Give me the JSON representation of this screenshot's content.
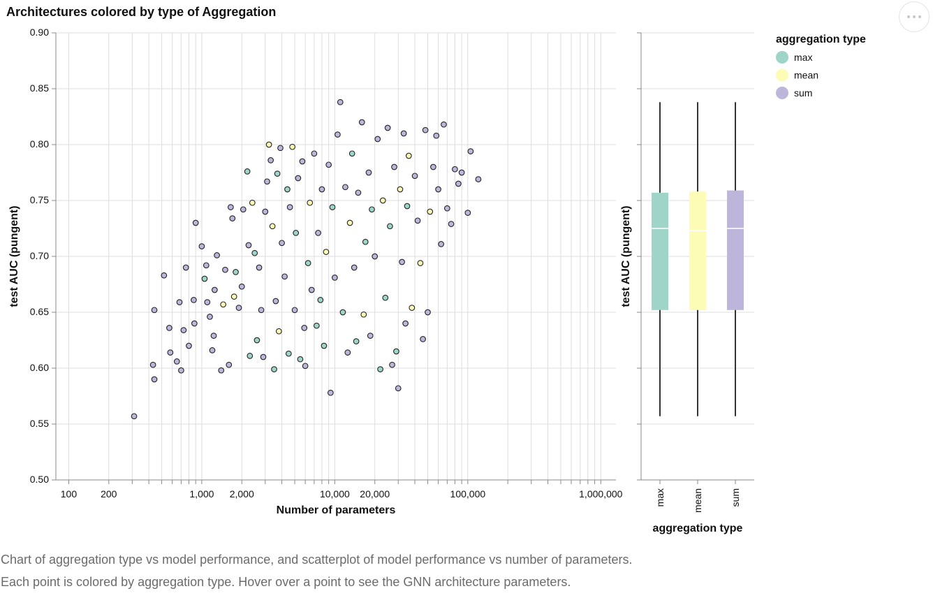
{
  "colors": {
    "max": "#9fd4c8",
    "mean": "#fdfcb6",
    "sum": "#beb6da",
    "grid": "#dddddd",
    "axis": "#888888",
    "point_stroke": "#222222"
  },
  "icons": {
    "more": "more-horizontal-icon"
  },
  "caption": {
    "line1": "Chart of aggregation type vs model performance, and scatterplot of model performance vs number of parameters.",
    "line2": "Each point is colored by aggregation type. Hover over a point to see the GNN architecture parameters."
  },
  "chart_data": [
    {
      "type": "scatter",
      "title": "Architectures colored by type of Aggregation",
      "xlabel": "Number of parameters",
      "ylabel": "test AUC (pungent)",
      "x_scale": "log",
      "xlim": [
        80,
        1300000
      ],
      "ylim": [
        0.5,
        0.9
      ],
      "x_tick_labels": [
        {
          "value": 100,
          "label": "100"
        },
        {
          "value": 200,
          "label": "200"
        },
        {
          "value": 1000,
          "label": "1,000"
        },
        {
          "value": 2000,
          "label": "2,000"
        },
        {
          "value": 10000,
          "label": "10,000"
        },
        {
          "value": 20000,
          "label": "20,000"
        },
        {
          "value": 100000,
          "label": "100,000"
        },
        {
          "value": 1000000,
          "label": "1,000,000"
        }
      ],
      "y_ticks": [
        {
          "value": 0.5,
          "label": "0.50"
        },
        {
          "value": 0.55,
          "label": "0.55"
        },
        {
          "value": 0.6,
          "label": "0.60"
        },
        {
          "value": 0.65,
          "label": "0.65"
        },
        {
          "value": 0.7,
          "label": "0.70"
        },
        {
          "value": 0.75,
          "label": "0.75"
        },
        {
          "value": 0.8,
          "label": "0.80"
        },
        {
          "value": 0.85,
          "label": "0.85"
        },
        {
          "value": 0.9,
          "label": "0.90"
        }
      ],
      "grid": true,
      "points": [
        {
          "x": 310,
          "y": 0.557,
          "agg": "sum"
        },
        {
          "x": 440,
          "y": 0.59,
          "agg": "sum"
        },
        {
          "x": 430,
          "y": 0.603,
          "agg": "sum"
        },
        {
          "x": 440,
          "y": 0.652,
          "agg": "sum"
        },
        {
          "x": 520,
          "y": 0.683,
          "agg": "sum"
        },
        {
          "x": 580,
          "y": 0.614,
          "agg": "sum"
        },
        {
          "x": 570,
          "y": 0.636,
          "agg": "sum"
        },
        {
          "x": 650,
          "y": 0.606,
          "agg": "sum"
        },
        {
          "x": 680,
          "y": 0.659,
          "agg": "sum"
        },
        {
          "x": 700,
          "y": 0.598,
          "agg": "sum"
        },
        {
          "x": 730,
          "y": 0.634,
          "agg": "sum"
        },
        {
          "x": 760,
          "y": 0.69,
          "agg": "sum"
        },
        {
          "x": 800,
          "y": 0.62,
          "agg": "sum"
        },
        {
          "x": 870,
          "y": 0.661,
          "agg": "sum"
        },
        {
          "x": 880,
          "y": 0.64,
          "agg": "sum"
        },
        {
          "x": 900,
          "y": 0.73,
          "agg": "sum"
        },
        {
          "x": 1000,
          "y": 0.709,
          "agg": "sum"
        },
        {
          "x": 1050,
          "y": 0.68,
          "agg": "max"
        },
        {
          "x": 1080,
          "y": 0.692,
          "agg": "sum"
        },
        {
          "x": 1100,
          "y": 0.659,
          "agg": "sum"
        },
        {
          "x": 1150,
          "y": 0.646,
          "agg": "sum"
        },
        {
          "x": 1200,
          "y": 0.616,
          "agg": "sum"
        },
        {
          "x": 1230,
          "y": 0.629,
          "agg": "sum"
        },
        {
          "x": 1250,
          "y": 0.67,
          "agg": "sum"
        },
        {
          "x": 1300,
          "y": 0.701,
          "agg": "sum"
        },
        {
          "x": 1400,
          "y": 0.598,
          "agg": "sum"
        },
        {
          "x": 1450,
          "y": 0.657,
          "agg": "mean"
        },
        {
          "x": 1500,
          "y": 0.688,
          "agg": "sum"
        },
        {
          "x": 1600,
          "y": 0.603,
          "agg": "sum"
        },
        {
          "x": 1650,
          "y": 0.744,
          "agg": "sum"
        },
        {
          "x": 1700,
          "y": 0.734,
          "agg": "sum"
        },
        {
          "x": 1750,
          "y": 0.664,
          "agg": "mean"
        },
        {
          "x": 1800,
          "y": 0.686,
          "agg": "max"
        },
        {
          "x": 1900,
          "y": 0.654,
          "agg": "sum"
        },
        {
          "x": 2000,
          "y": 0.673,
          "agg": "sum"
        },
        {
          "x": 2050,
          "y": 0.742,
          "agg": "sum"
        },
        {
          "x": 2200,
          "y": 0.776,
          "agg": "max"
        },
        {
          "x": 2250,
          "y": 0.71,
          "agg": "sum"
        },
        {
          "x": 2300,
          "y": 0.611,
          "agg": "max"
        },
        {
          "x": 2400,
          "y": 0.748,
          "agg": "mean"
        },
        {
          "x": 2500,
          "y": 0.703,
          "agg": "max"
        },
        {
          "x": 2600,
          "y": 0.625,
          "agg": "max"
        },
        {
          "x": 2700,
          "y": 0.69,
          "agg": "sum"
        },
        {
          "x": 2800,
          "y": 0.652,
          "agg": "sum"
        },
        {
          "x": 2900,
          "y": 0.61,
          "agg": "sum"
        },
        {
          "x": 3000,
          "y": 0.74,
          "agg": "sum"
        },
        {
          "x": 3100,
          "y": 0.767,
          "agg": "sum"
        },
        {
          "x": 3200,
          "y": 0.8,
          "agg": "mean"
        },
        {
          "x": 3300,
          "y": 0.786,
          "agg": "sum"
        },
        {
          "x": 3400,
          "y": 0.727,
          "agg": "mean"
        },
        {
          "x": 3500,
          "y": 0.599,
          "agg": "max"
        },
        {
          "x": 3600,
          "y": 0.66,
          "agg": "sum"
        },
        {
          "x": 3700,
          "y": 0.774,
          "agg": "max"
        },
        {
          "x": 3800,
          "y": 0.633,
          "agg": "mean"
        },
        {
          "x": 3900,
          "y": 0.797,
          "agg": "sum"
        },
        {
          "x": 4000,
          "y": 0.712,
          "agg": "sum"
        },
        {
          "x": 4200,
          "y": 0.682,
          "agg": "sum"
        },
        {
          "x": 4400,
          "y": 0.76,
          "agg": "max"
        },
        {
          "x": 4500,
          "y": 0.613,
          "agg": "max"
        },
        {
          "x": 4600,
          "y": 0.744,
          "agg": "sum"
        },
        {
          "x": 4800,
          "y": 0.798,
          "agg": "mean"
        },
        {
          "x": 5000,
          "y": 0.652,
          "agg": "sum"
        },
        {
          "x": 5100,
          "y": 0.721,
          "agg": "max"
        },
        {
          "x": 5300,
          "y": 0.77,
          "agg": "sum"
        },
        {
          "x": 5500,
          "y": 0.608,
          "agg": "max"
        },
        {
          "x": 5700,
          "y": 0.785,
          "agg": "sum"
        },
        {
          "x": 5900,
          "y": 0.636,
          "agg": "sum"
        },
        {
          "x": 6000,
          "y": 0.602,
          "agg": "sum"
        },
        {
          "x": 6300,
          "y": 0.694,
          "agg": "max"
        },
        {
          "x": 6500,
          "y": 0.748,
          "agg": "mean"
        },
        {
          "x": 6700,
          "y": 0.67,
          "agg": "sum"
        },
        {
          "x": 7000,
          "y": 0.792,
          "agg": "sum"
        },
        {
          "x": 7300,
          "y": 0.638,
          "agg": "max"
        },
        {
          "x": 7500,
          "y": 0.721,
          "agg": "sum"
        },
        {
          "x": 7800,
          "y": 0.661,
          "agg": "max"
        },
        {
          "x": 8000,
          "y": 0.76,
          "agg": "sum"
        },
        {
          "x": 8300,
          "y": 0.62,
          "agg": "max"
        },
        {
          "x": 8600,
          "y": 0.704,
          "agg": "mean"
        },
        {
          "x": 9000,
          "y": 0.782,
          "agg": "sum"
        },
        {
          "x": 9300,
          "y": 0.578,
          "agg": "sum"
        },
        {
          "x": 9600,
          "y": 0.744,
          "agg": "max"
        },
        {
          "x": 10000,
          "y": 0.681,
          "agg": "sum"
        },
        {
          "x": 10500,
          "y": 0.809,
          "agg": "sum"
        },
        {
          "x": 11000,
          "y": 0.838,
          "agg": "sum"
        },
        {
          "x": 11500,
          "y": 0.65,
          "agg": "max"
        },
        {
          "x": 12000,
          "y": 0.762,
          "agg": "sum"
        },
        {
          "x": 12500,
          "y": 0.614,
          "agg": "sum"
        },
        {
          "x": 13000,
          "y": 0.73,
          "agg": "mean"
        },
        {
          "x": 13500,
          "y": 0.792,
          "agg": "max"
        },
        {
          "x": 14000,
          "y": 0.69,
          "agg": "sum"
        },
        {
          "x": 14500,
          "y": 0.624,
          "agg": "max"
        },
        {
          "x": 15000,
          "y": 0.757,
          "agg": "sum"
        },
        {
          "x": 16000,
          "y": 0.82,
          "agg": "sum"
        },
        {
          "x": 16500,
          "y": 0.648,
          "agg": "mean"
        },
        {
          "x": 17000,
          "y": 0.713,
          "agg": "max"
        },
        {
          "x": 18000,
          "y": 0.775,
          "agg": "sum"
        },
        {
          "x": 18500,
          "y": 0.629,
          "agg": "sum"
        },
        {
          "x": 19000,
          "y": 0.742,
          "agg": "max"
        },
        {
          "x": 20000,
          "y": 0.7,
          "agg": "sum"
        },
        {
          "x": 21000,
          "y": 0.805,
          "agg": "sum"
        },
        {
          "x": 22000,
          "y": 0.599,
          "agg": "max"
        },
        {
          "x": 23000,
          "y": 0.75,
          "agg": "mean"
        },
        {
          "x": 24000,
          "y": 0.663,
          "agg": "max"
        },
        {
          "x": 25000,
          "y": 0.815,
          "agg": "sum"
        },
        {
          "x": 26000,
          "y": 0.727,
          "agg": "max"
        },
        {
          "x": 27000,
          "y": 0.603,
          "agg": "sum"
        },
        {
          "x": 28000,
          "y": 0.78,
          "agg": "sum"
        },
        {
          "x": 29000,
          "y": 0.615,
          "agg": "max"
        },
        {
          "x": 30000,
          "y": 0.582,
          "agg": "sum"
        },
        {
          "x": 31000,
          "y": 0.76,
          "agg": "mean"
        },
        {
          "x": 32000,
          "y": 0.695,
          "agg": "sum"
        },
        {
          "x": 33000,
          "y": 0.81,
          "agg": "sum"
        },
        {
          "x": 34000,
          "y": 0.64,
          "agg": "sum"
        },
        {
          "x": 35000,
          "y": 0.745,
          "agg": "max"
        },
        {
          "x": 36000,
          "y": 0.79,
          "agg": "mean"
        },
        {
          "x": 38000,
          "y": 0.654,
          "agg": "mean"
        },
        {
          "x": 40000,
          "y": 0.772,
          "agg": "sum"
        },
        {
          "x": 42000,
          "y": 0.732,
          "agg": "sum"
        },
        {
          "x": 44000,
          "y": 0.694,
          "agg": "mean"
        },
        {
          "x": 46000,
          "y": 0.626,
          "agg": "sum"
        },
        {
          "x": 48000,
          "y": 0.813,
          "agg": "sum"
        },
        {
          "x": 50000,
          "y": 0.65,
          "agg": "sum"
        },
        {
          "x": 52000,
          "y": 0.74,
          "agg": "mean"
        },
        {
          "x": 55000,
          "y": 0.78,
          "agg": "sum"
        },
        {
          "x": 58000,
          "y": 0.808,
          "agg": "sum"
        },
        {
          "x": 60000,
          "y": 0.76,
          "agg": "sum"
        },
        {
          "x": 63000,
          "y": 0.711,
          "agg": "sum"
        },
        {
          "x": 66000,
          "y": 0.818,
          "agg": "sum"
        },
        {
          "x": 70000,
          "y": 0.743,
          "agg": "sum"
        },
        {
          "x": 75000,
          "y": 0.729,
          "agg": "sum"
        },
        {
          "x": 80000,
          "y": 0.778,
          "agg": "sum"
        },
        {
          "x": 85000,
          "y": 0.765,
          "agg": "sum"
        },
        {
          "x": 90000,
          "y": 0.775,
          "agg": "sum"
        },
        {
          "x": 100000,
          "y": 0.739,
          "agg": "sum"
        },
        {
          "x": 105000,
          "y": 0.794,
          "agg": "sum"
        },
        {
          "x": 120000,
          "y": 0.769,
          "agg": "sum"
        }
      ]
    },
    {
      "type": "box",
      "xlabel": "aggregation type",
      "ylabel": "test AUC (pungent)",
      "ylim": [
        0.5,
        0.9
      ],
      "categories": [
        "max",
        "mean",
        "sum"
      ],
      "boxes": [
        {
          "name": "max",
          "min": 0.557,
          "q1": 0.652,
          "median": 0.725,
          "q3": 0.757,
          "max": 0.838
        },
        {
          "name": "mean",
          "min": 0.557,
          "q1": 0.652,
          "median": 0.723,
          "q3": 0.758,
          "max": 0.838
        },
        {
          "name": "sum",
          "min": 0.557,
          "q1": 0.652,
          "median": 0.725,
          "q3": 0.759,
          "max": 0.838
        }
      ]
    }
  ],
  "legend": {
    "title": "aggregation type",
    "placement": "top-right",
    "items": [
      "max",
      "mean",
      "sum"
    ]
  }
}
